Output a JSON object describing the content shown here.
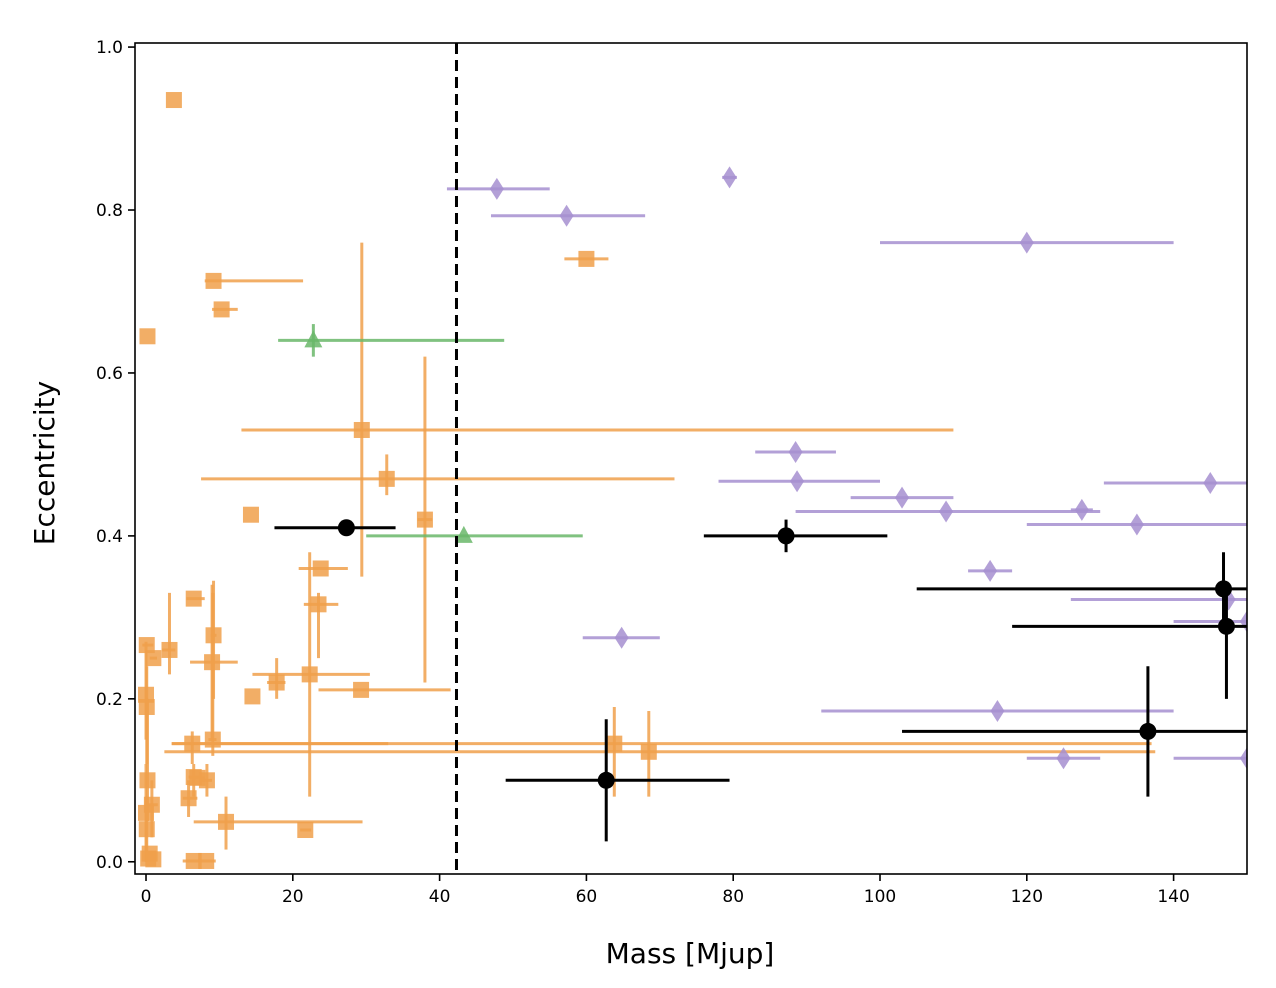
{
  "chart_data": {
    "type": "scatter",
    "xlabel": "Mass [Mjup]",
    "ylabel": "Eccentricity",
    "xlim": [
      -1.5,
      150
    ],
    "ylim": [
      -0.015,
      1.005
    ],
    "x_ticks": [
      "0",
      "20",
      "40",
      "60",
      "80",
      "100",
      "120",
      "140"
    ],
    "y_ticks": [
      "0.0",
      "0.2",
      "0.4",
      "0.6",
      "0.8",
      "1.0"
    ],
    "grid": false,
    "legend": "none",
    "reference_line": {
      "x": 42.3,
      "style": "dashed",
      "color": "#000000"
    },
    "series": [
      {
        "marker": "square",
        "color": "#f0a04b",
        "points": [
          {
            "x": 3.8,
            "y": 0.935
          },
          {
            "x": 0.2,
            "y": 0.645
          },
          {
            "x": 9.2,
            "y": 0.713,
            "xlo": 8.0,
            "xhi": 21.4
          },
          {
            "x": 10.3,
            "y": 0.678,
            "xlo": 9.0,
            "xhi": 12.5
          },
          {
            "x": 60.0,
            "y": 0.74,
            "xlo": 57.0,
            "xhi": 63.0
          },
          {
            "x": 29.4,
            "y": 0.53,
            "xlo": 13.0,
            "xhi": 110.0,
            "ylo": 0.35,
            "yhi": 0.76
          },
          {
            "x": 32.8,
            "y": 0.47,
            "xlo": 7.5,
            "xhi": 72.0,
            "ylo": 0.45,
            "yhi": 0.5
          },
          {
            "x": 14.3,
            "y": 0.426
          },
          {
            "x": 38.0,
            "y": 0.42,
            "xlo": 37.0,
            "xhi": 39.0,
            "ylo": 0.22,
            "yhi": 0.62
          },
          {
            "x": 23.8,
            "y": 0.36,
            "xlo": 20.8,
            "xhi": 27.5
          },
          {
            "x": 23.5,
            "y": 0.316,
            "xlo": 21.5,
            "xhi": 26.2,
            "ylo": 0.25,
            "yhi": 0.33
          },
          {
            "x": 6.5,
            "y": 0.323,
            "xlo": 5.5,
            "xhi": 8.0
          },
          {
            "x": 9.2,
            "y": 0.278,
            "xlo": 8.8,
            "xhi": 9.6,
            "ylo": 0.2,
            "yhi": 0.345
          },
          {
            "x": 3.2,
            "y": 0.26,
            "xlo": 2.2,
            "xhi": 4.0,
            "ylo": 0.23,
            "yhi": 0.33
          },
          {
            "x": 1.0,
            "y": 0.25,
            "xlo": 0.5,
            "xhi": 1.5
          },
          {
            "x": 0.1,
            "y": 0.266,
            "xlo": -0.5,
            "xhi": 1.0
          },
          {
            "x": 9.0,
            "y": 0.245,
            "xlo": 6.0,
            "xhi": 12.5,
            "ylo": 0.15,
            "yhi": 0.34
          },
          {
            "x": 22.3,
            "y": 0.23,
            "xlo": 14.5,
            "xhi": 30.5,
            "ylo": 0.08,
            "yhi": 0.38
          },
          {
            "x": 17.8,
            "y": 0.22,
            "xlo": 16.5,
            "xhi": 19.0,
            "ylo": 0.2,
            "yhi": 0.25
          },
          {
            "x": 29.3,
            "y": 0.211,
            "xlo": 23.5,
            "xhi": 41.5
          },
          {
            "x": 14.5,
            "y": 0.203
          },
          {
            "x": 0.0,
            "y": 0.205,
            "ylo": 0.15,
            "yhi": 0.27
          },
          {
            "x": 0.1,
            "y": 0.19,
            "ylo": 0.12,
            "yhi": 0.24
          },
          {
            "x": 9.1,
            "y": 0.15,
            "xlo": 8.5,
            "xhi": 9.6,
            "ylo": 0.13,
            "yhi": 0.33
          },
          {
            "x": 6.3,
            "y": 0.145,
            "xlo": 3.5,
            "xhi": 33.0,
            "ylo": 0.12,
            "yhi": 0.16
          },
          {
            "x": 63.8,
            "y": 0.145,
            "xlo": 3.5,
            "xhi": 137.0,
            "ylo": 0.08,
            "yhi": 0.19
          },
          {
            "x": 68.5,
            "y": 0.135,
            "xlo": 2.5,
            "xhi": 137.5,
            "ylo": 0.08,
            "yhi": 0.185
          },
          {
            "x": 6.5,
            "y": 0.104,
            "xlo": 5.8,
            "xhi": 7.5,
            "ylo": 0.08,
            "yhi": 0.12
          },
          {
            "x": 7.0,
            "y": 0.103,
            "xlo": 6.0,
            "xhi": 8.0
          },
          {
            "x": 8.3,
            "y": 0.1,
            "xlo": 7.5,
            "xhi": 9.0,
            "ylo": 0.08,
            "yhi": 0.12
          },
          {
            "x": 0.2,
            "y": 0.1,
            "ylo": 0.05,
            "yhi": 0.2
          },
          {
            "x": 5.8,
            "y": 0.078,
            "xlo": 5.0,
            "xhi": 7.0,
            "ylo": 0.055,
            "yhi": 0.1
          },
          {
            "x": 0.8,
            "y": 0.07,
            "xlo": 0.0,
            "xhi": 1.6,
            "ylo": 0.03,
            "yhi": 0.1
          },
          {
            "x": 0.0,
            "y": 0.06,
            "ylo": 0.0,
            "yhi": 0.12
          },
          {
            "x": 0.1,
            "y": 0.04,
            "ylo": 0.0,
            "yhi": 0.08
          },
          {
            "x": 10.9,
            "y": 0.049,
            "xlo": 6.5,
            "xhi": 29.5,
            "ylo": 0.015,
            "yhi": 0.08
          },
          {
            "x": 21.7,
            "y": 0.039,
            "xlo": 21.0,
            "xhi": 22.5
          },
          {
            "x": 0.5,
            "y": 0.01,
            "xlo": 0.0,
            "xhi": 1.0
          },
          {
            "x": 0.3,
            "y": 0.004
          },
          {
            "x": 1.0,
            "y": 0.003
          },
          {
            "x": 6.5,
            "y": 0.001,
            "xlo": 5.0,
            "xhi": 9.5
          },
          {
            "x": 8.2,
            "y": 0.001
          }
        ]
      },
      {
        "marker": "diamond",
        "color": "#a68fd0",
        "points": [
          {
            "x": 79.5,
            "y": 0.84,
            "xlo": 78.5,
            "xhi": 80.5
          },
          {
            "x": 47.8,
            "y": 0.826,
            "xlo": 41.0,
            "xhi": 55.0
          },
          {
            "x": 57.3,
            "y": 0.793,
            "xlo": 47.0,
            "xhi": 68.0
          },
          {
            "x": 120.0,
            "y": 0.76,
            "xlo": 100.0,
            "xhi": 140.0
          },
          {
            "x": 88.5,
            "y": 0.503,
            "xlo": 83.0,
            "xhi": 94.0
          },
          {
            "x": 88.7,
            "y": 0.467,
            "xlo": 78.0,
            "xhi": 100.0
          },
          {
            "x": 145.0,
            "y": 0.465,
            "xlo": 130.5,
            "xhi": 150.0
          },
          {
            "x": 103.0,
            "y": 0.447,
            "xlo": 96.0,
            "xhi": 110.0
          },
          {
            "x": 127.5,
            "y": 0.432,
            "xlo": 126.0,
            "xhi": 129.0
          },
          {
            "x": 109.0,
            "y": 0.43,
            "xlo": 88.5,
            "xhi": 130.0
          },
          {
            "x": 135.0,
            "y": 0.414,
            "xlo": 120.0,
            "xhi": 150.0
          },
          {
            "x": 115.0,
            "y": 0.357,
            "xlo": 112.0,
            "xhi": 118.0
          },
          {
            "x": 147.5,
            "y": 0.322,
            "xlo": 126.0,
            "xhi": 150.0
          },
          {
            "x": 150.0,
            "y": 0.295,
            "xlo": 140.0,
            "xhi": 150.0
          },
          {
            "x": 64.8,
            "y": 0.275,
            "xlo": 59.5,
            "xhi": 70.0
          },
          {
            "x": 116.0,
            "y": 0.185,
            "xlo": 92.0,
            "xhi": 140.0
          },
          {
            "x": 125.0,
            "y": 0.127,
            "xlo": 120.0,
            "xhi": 130.0
          },
          {
            "x": 150.0,
            "y": 0.127,
            "xlo": 140.0,
            "xhi": 150.0
          }
        ]
      },
      {
        "marker": "triangle",
        "color": "#6ab76a",
        "points": [
          {
            "x": 22.8,
            "y": 0.64,
            "xlo": 18.0,
            "xhi": 48.8,
            "ylo": 0.62,
            "yhi": 0.66
          },
          {
            "x": 43.3,
            "y": 0.4,
            "xlo": 30.0,
            "xhi": 59.5
          }
        ]
      },
      {
        "marker": "circle",
        "color": "#000000",
        "points": [
          {
            "x": 27.3,
            "y": 0.41,
            "xlo": 17.5,
            "xhi": 34.0
          },
          {
            "x": 87.2,
            "y": 0.4,
            "xlo": 76.0,
            "xhi": 101.0,
            "ylo": 0.38,
            "yhi": 0.42
          },
          {
            "x": 146.8,
            "y": 0.335,
            "xlo": 105.0,
            "xhi": 150.0,
            "ylo": 0.29,
            "yhi": 0.38
          },
          {
            "x": 147.2,
            "y": 0.289,
            "xlo": 118.0,
            "xhi": 150.0,
            "ylo": 0.2,
            "yhi": 0.33
          },
          {
            "x": 136.5,
            "y": 0.16,
            "xlo": 103.0,
            "xhi": 150.0,
            "ylo": 0.08,
            "yhi": 0.24
          },
          {
            "x": 62.7,
            "y": 0.1,
            "xlo": 49.0,
            "xhi": 79.5,
            "ylo": 0.025,
            "yhi": 0.175
          }
        ]
      }
    ]
  }
}
